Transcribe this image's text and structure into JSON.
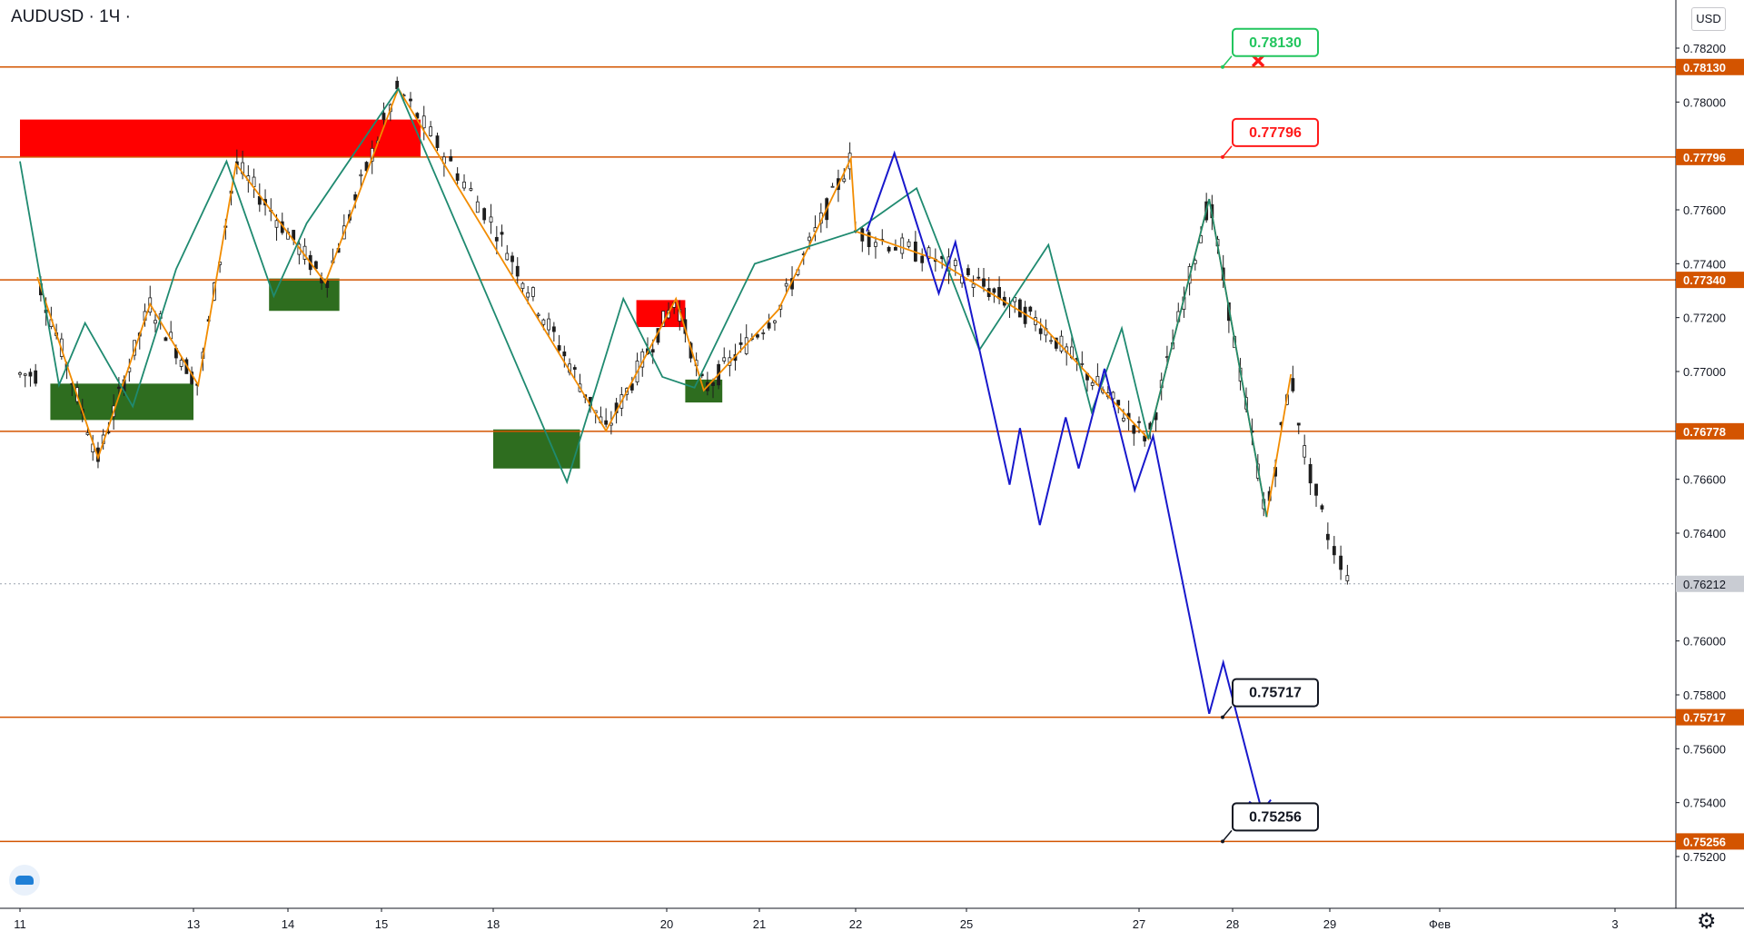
{
  "header": {
    "symbol": "AUDUSD",
    "interval": "1Ч",
    "symbol_text": "AUDUSD · 1Ч ·",
    "currency": "USD"
  },
  "chart_data": {
    "type": "line",
    "title": "AUDUSD · 1Ч",
    "ylim": [
      0.7499,
      0.7832
    ],
    "xlim": [
      0,
      22
    ],
    "price_ticks": [
      "0.78200",
      "0.78000",
      "0.77600",
      "0.77400",
      "0.77200",
      "0.77000",
      "0.76600",
      "0.76400",
      "0.76000",
      "0.75800",
      "0.75600",
      "0.75400",
      "0.75200"
    ],
    "x_ticks": [
      {
        "label": "11",
        "x": 0
      },
      {
        "label": "13",
        "x": 2
      },
      {
        "label": "14",
        "x": 3
      },
      {
        "label": "15",
        "x": 4
      },
      {
        "label": "18",
        "x": 5
      },
      {
        "label": "20",
        "x": 7
      },
      {
        "label": "21",
        "x": 8
      },
      {
        "label": "22",
        "x": 9
      },
      {
        "label": "25",
        "x": 10
      },
      {
        "label": "27",
        "x": 12
      },
      {
        "label": "28",
        "x": 13
      },
      {
        "label": "29",
        "x": 14
      },
      {
        "label": "Фев",
        "x": 15
      },
      {
        "label": "3",
        "x": 17
      }
    ],
    "levels": [
      {
        "value": "0.78130",
        "y": 0.7813,
        "callout_color": "#22c55e",
        "callout_bg": "#ffffff",
        "text_color": "#22c55e"
      },
      {
        "value": "0.77796",
        "y": 0.77796,
        "callout_color": "#ff1a1a",
        "callout_bg": "#ffffff",
        "text_color": "#ff1a1a"
      },
      {
        "value": "0.77340",
        "y": 0.7734,
        "callout_color": null
      },
      {
        "value": "0.76778",
        "y": 0.76778,
        "callout_color": null
      },
      {
        "value": "0.75717",
        "y": 0.75717,
        "callout_color": "#131722",
        "callout_bg": "#ffffff",
        "text_color": "#131722"
      },
      {
        "value": "0.75256",
        "y": 0.75256,
        "callout_color": "#131722",
        "callout_bg": "#ffffff",
        "text_color": "#131722"
      }
    ],
    "current_price": {
      "value": "0.76212",
      "y": 0.76212
    },
    "zones": [
      {
        "color": "#ff0000",
        "x0": 0,
        "x1": 4.35,
        "y0": 0.77796,
        "y1": 0.77935
      },
      {
        "color": "#ff0000",
        "x0": 6.65,
        "x1": 7.2,
        "y0": 0.77165,
        "y1": 0.77265
      },
      {
        "color": "#2e6d1f",
        "x0": 0.35,
        "x1": 2.0,
        "y0": 0.7682,
        "y1": 0.76955
      },
      {
        "color": "#2e6d1f",
        "x0": 2.8,
        "x1": 3.55,
        "y0": 0.77225,
        "y1": 0.77345
      },
      {
        "color": "#2e6d1f",
        "x0": 5.0,
        "x1": 6.0,
        "y0": 0.7664,
        "y1": 0.76785
      },
      {
        "color": "#2e6d1f",
        "x0": 7.2,
        "x1": 7.6,
        "y0": 0.76885,
        "y1": 0.7697
      }
    ],
    "series": [
      {
        "name": "",
        "color": "#f28c00",
        "points": [
          [
            0.2,
            0.7735
          ],
          [
            0.9,
            0.7668
          ],
          [
            1.5,
            0.7725
          ],
          [
            2.05,
            0.7695
          ],
          [
            2.45,
            0.7777
          ],
          [
            3.4,
            0.7733
          ],
          [
            4.15,
            0.7805
          ],
          [
            6.3,
            0.7678
          ],
          [
            7.1,
            0.7727
          ],
          [
            7.4,
            0.7693
          ],
          [
            8.2,
            0.7723
          ],
          [
            8.95,
            0.7779
          ],
          [
            9.0,
            0.7752
          ],
          [
            9.7,
            0.7742
          ],
          [
            10.85,
            0.7718
          ],
          [
            12.1,
            0.7675
          ],
          [
            12.75,
            0.7764
          ],
          [
            13.35,
            0.7646
          ],
          [
            13.6,
            0.7699
          ]
        ]
      },
      {
        "name": "",
        "color": "#1f8a70",
        "points": [
          [
            0.0,
            0.7778
          ],
          [
            0.45,
            0.7695
          ],
          [
            0.75,
            0.7718
          ],
          [
            1.3,
            0.7687
          ],
          [
            1.8,
            0.7738
          ],
          [
            2.35,
            0.7778
          ],
          [
            2.85,
            0.7728
          ],
          [
            3.2,
            0.7755
          ],
          [
            4.15,
            0.7805
          ],
          [
            5.85,
            0.7659
          ],
          [
            6.5,
            0.7727
          ],
          [
            6.95,
            0.7698
          ],
          [
            7.3,
            0.7694
          ],
          [
            7.95,
            0.774
          ],
          [
            9.0,
            0.7752
          ],
          [
            9.55,
            0.7768
          ],
          [
            10.15,
            0.7708
          ],
          [
            10.95,
            0.7747
          ],
          [
            11.45,
            0.7685
          ],
          [
            11.8,
            0.7716
          ],
          [
            12.1,
            0.7675
          ],
          [
            12.75,
            0.7764
          ],
          [
            13.35,
            0.7646
          ]
        ]
      },
      {
        "name": "",
        "color": "#1818cc",
        "points": [
          [
            9.1,
            0.7752
          ],
          [
            9.35,
            0.7781
          ],
          [
            9.75,
            0.7729
          ],
          [
            9.9,
            0.7748
          ],
          [
            10.5,
            0.7658
          ],
          [
            10.62,
            0.7679
          ],
          [
            10.85,
            0.7643
          ],
          [
            11.15,
            0.7683
          ],
          [
            11.3,
            0.7664
          ],
          [
            11.6,
            0.7701
          ],
          [
            11.95,
            0.7656
          ],
          [
            12.15,
            0.7676
          ],
          [
            12.75,
            0.7573
          ],
          [
            12.9,
            0.7592
          ],
          [
            13.3,
            0.7537
          ]
        ]
      }
    ],
    "cross_marker": {
      "x": 13.3,
      "y": 0.7818
    }
  },
  "colors": {
    "level_line": "#d35400",
    "axis_text": "#131722",
    "axis_bg": "#ffffff",
    "candle": "#1e1e1e"
  },
  "icons": {
    "logo": "tradingview-cloud-icon",
    "settings": "gear-icon"
  }
}
